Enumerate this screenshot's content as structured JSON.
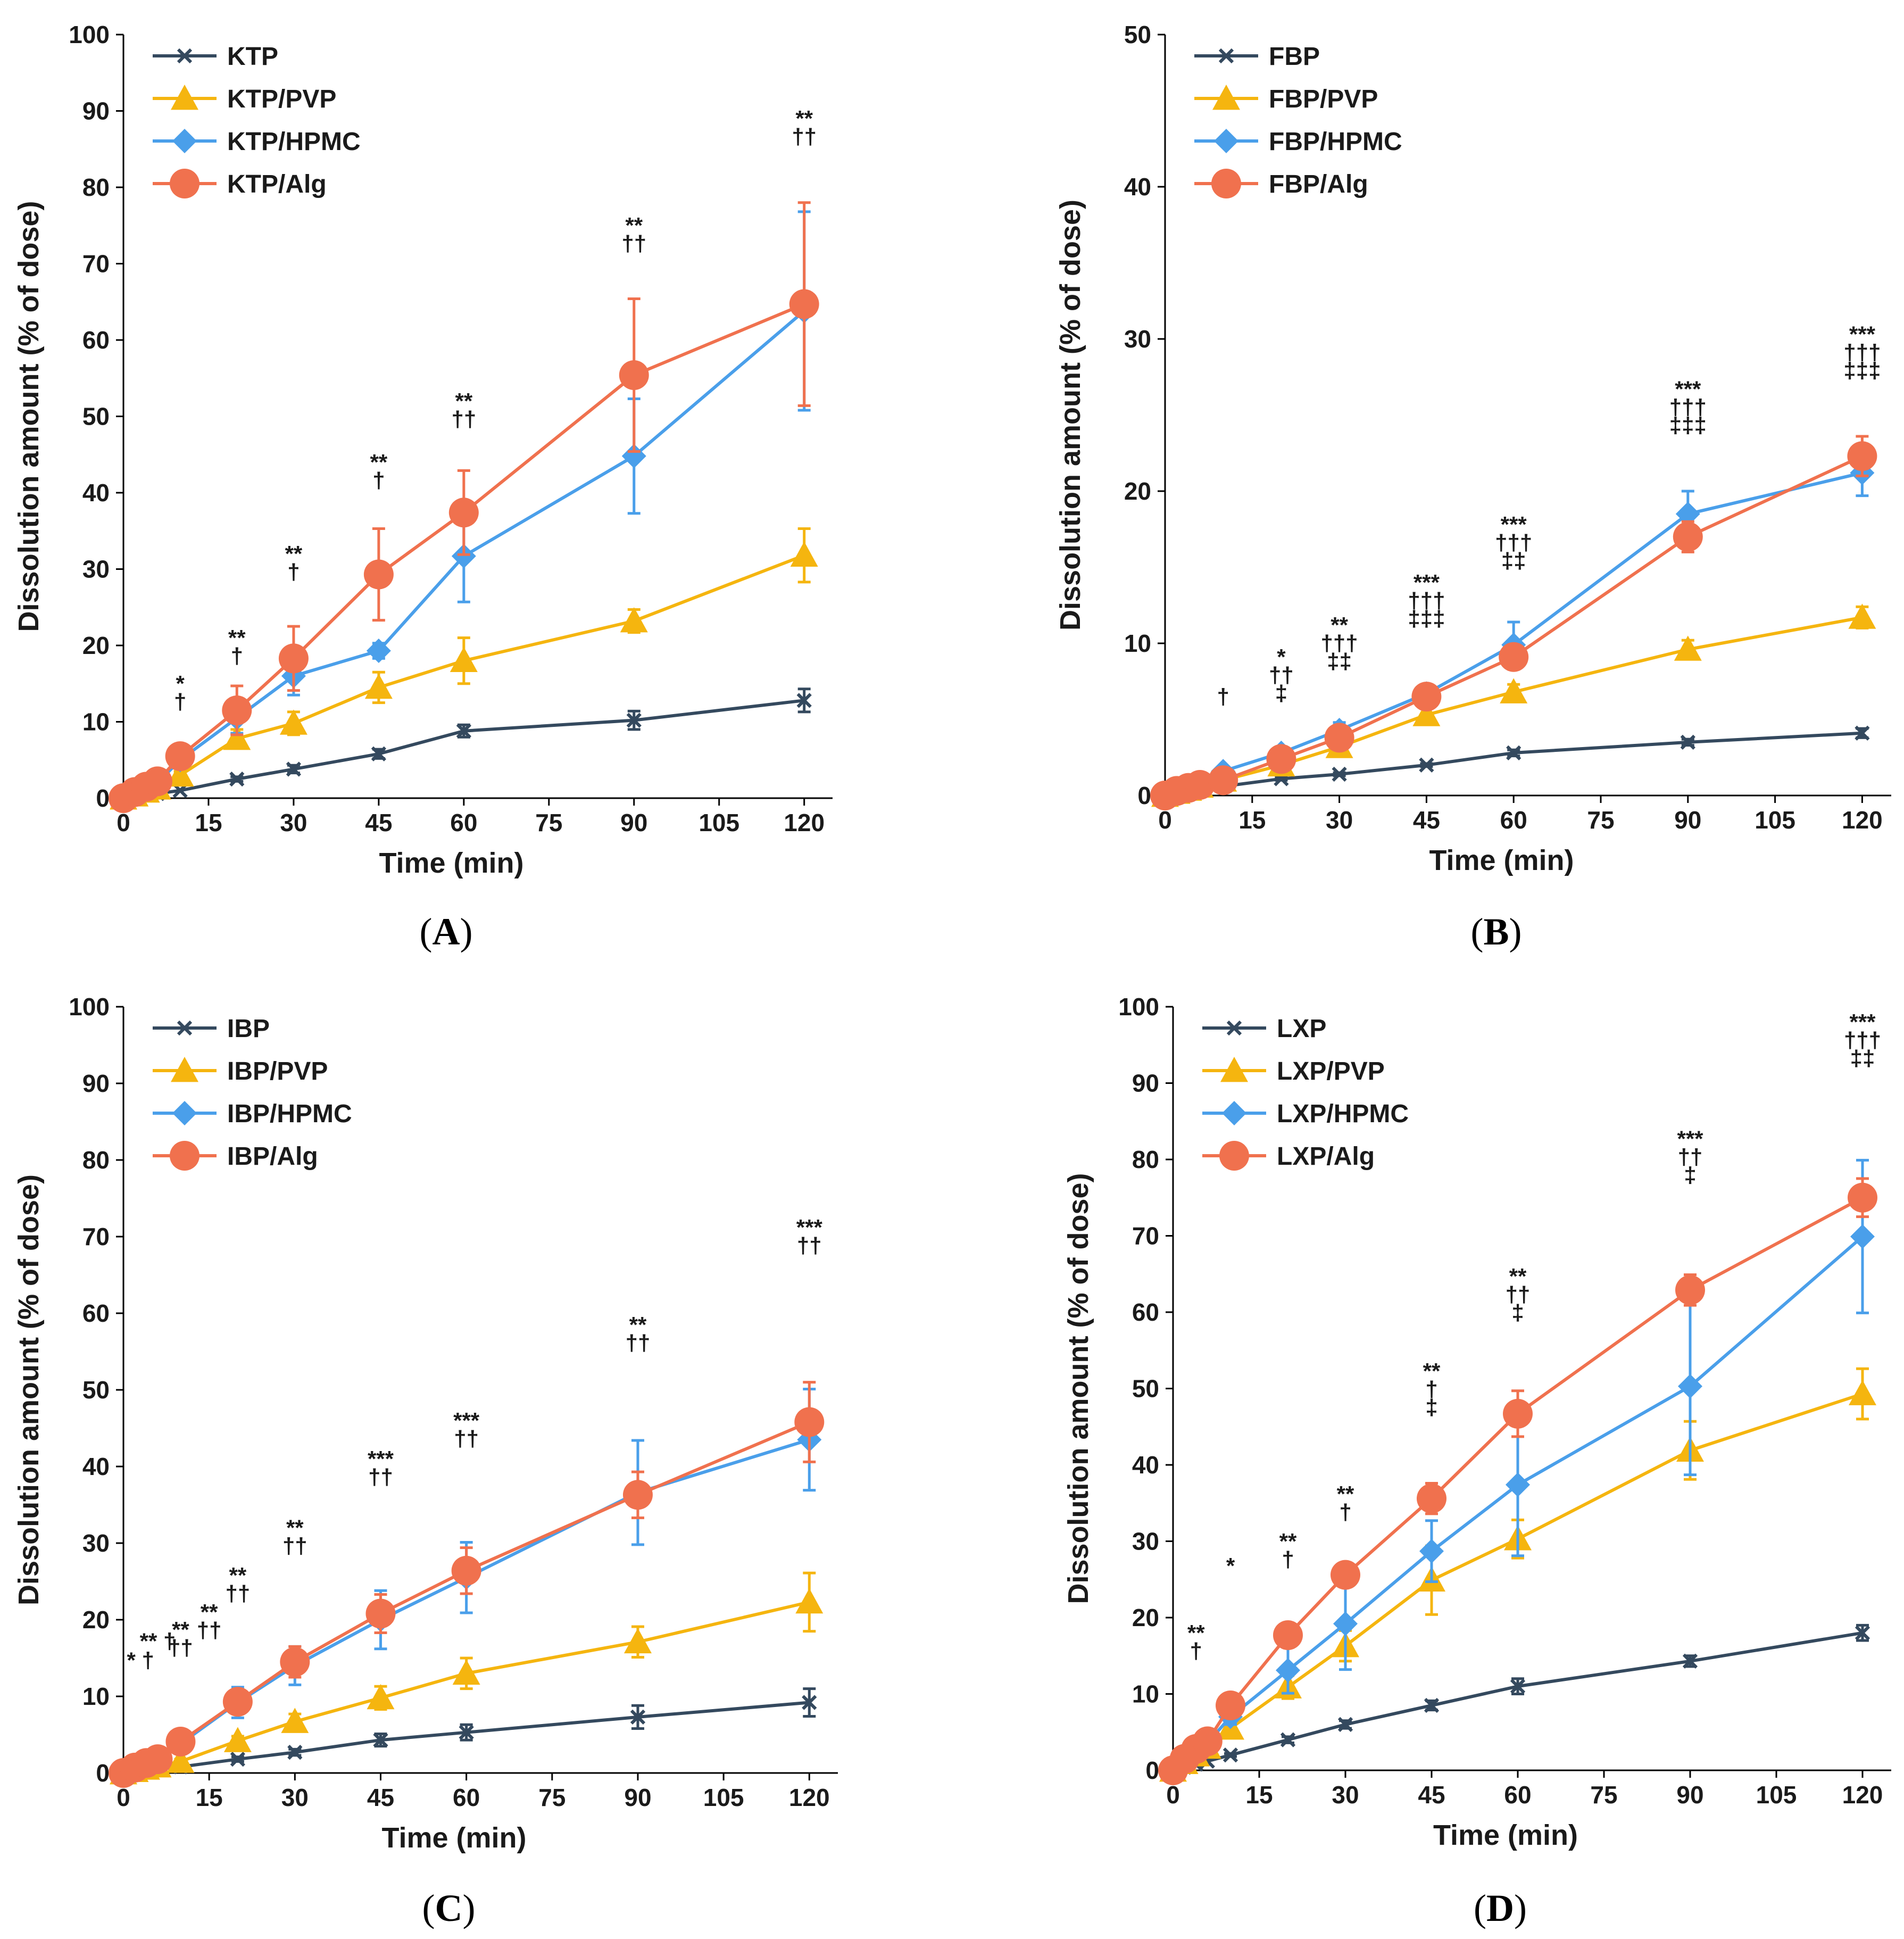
{
  "colors": {
    "drug": "#34495E",
    "pvp": "#F5B50F",
    "hpmc": "#4A9FEA",
    "alg": "#F0714E",
    "axis": "#000000"
  },
  "chart_data": [
    {
      "type": "line",
      "panel_label": "A",
      "xlabel": "Time (min)",
      "ylabel": "Dissolution amount (% of dose)",
      "xlim": [
        0,
        125
      ],
      "ylim": [
        0,
        100
      ],
      "xticks": [
        0,
        15,
        30,
        45,
        60,
        75,
        90,
        105,
        120
      ],
      "yticks": [
        0,
        10,
        20,
        30,
        40,
        50,
        60,
        70,
        80,
        90,
        100
      ],
      "x": [
        0,
        2,
        4,
        6,
        10,
        20,
        30,
        45,
        60,
        90,
        120
      ],
      "legend_position": "top-left",
      "series": [
        {
          "name": "KTP",
          "marker": "x",
          "color": "drug",
          "values": [
            0,
            0.2,
            0.4,
            0.6,
            1.0,
            2.5,
            3.8,
            5.8,
            8.8,
            10.2,
            12.8
          ],
          "errors": [
            0,
            0,
            0,
            0,
            0,
            0.3,
            0.5,
            0.6,
            0.8,
            1.2,
            1.5
          ]
        },
        {
          "name": "KTP/PVP",
          "marker": "triangle",
          "color": "pvp",
          "values": [
            0,
            0.4,
            0.9,
            1.3,
            3.0,
            7.8,
            9.8,
            14.5,
            18.0,
            23.2,
            31.8
          ],
          "errors": [
            0,
            0,
            0,
            0,
            0.5,
            1.2,
            1.5,
            2.0,
            3.0,
            1.5,
            3.5
          ]
        },
        {
          "name": "KTP/HPMC",
          "marker": "diamond",
          "color": "hpmc",
          "values": [
            0,
            0.7,
            1.3,
            2.0,
            5.0,
            10.5,
            16.0,
            19.3,
            31.7,
            44.8,
            63.8
          ],
          "errors": [
            0,
            0,
            0,
            0,
            0.8,
            2.0,
            2.5,
            1.0,
            6.0,
            7.5,
            13.0
          ]
        },
        {
          "name": "KTP/Alg",
          "marker": "circle",
          "color": "alg",
          "values": [
            0,
            0.8,
            1.5,
            2.2,
            5.5,
            11.5,
            18.3,
            29.3,
            37.4,
            55.4,
            64.7
          ],
          "errors": [
            0,
            0,
            0,
            0,
            1.0,
            3.2,
            4.2,
            6.0,
            5.5,
            10.0,
            13.3
          ]
        }
      ],
      "annotations": [
        {
          "x": 10,
          "y": 14,
          "lines": [
            "*",
            "†"
          ]
        },
        {
          "x": 20,
          "y": 20,
          "lines": [
            "**",
            "†"
          ]
        },
        {
          "x": 30,
          "y": 31,
          "lines": [
            "**",
            "†"
          ]
        },
        {
          "x": 45,
          "y": 43,
          "lines": [
            "**",
            "†"
          ]
        },
        {
          "x": 60,
          "y": 51,
          "lines": [
            "**",
            "††"
          ]
        },
        {
          "x": 90,
          "y": 74,
          "lines": [
            "**",
            "††"
          ]
        },
        {
          "x": 120,
          "y": 88,
          "lines": [
            "**",
            "††"
          ]
        }
      ]
    },
    {
      "type": "line",
      "panel_label": "B",
      "xlabel": "Time (min)",
      "ylabel": "Dissolution amount (% of dose)",
      "xlim": [
        0,
        125
      ],
      "ylim": [
        0,
        50
      ],
      "xticks": [
        0,
        15,
        30,
        45,
        60,
        75,
        90,
        105,
        120
      ],
      "yticks": [
        0,
        10,
        20,
        30,
        40,
        50
      ],
      "x": [
        0,
        2,
        4,
        6,
        10,
        20,
        30,
        45,
        60,
        90,
        120
      ],
      "legend_position": "top-left",
      "series": [
        {
          "name": "FBP",
          "marker": "x",
          "color": "drug",
          "values": [
            0,
            0.1,
            0.2,
            0.3,
            0.6,
            1.1,
            1.4,
            2.0,
            2.8,
            3.5,
            4.1
          ],
          "errors": [
            0,
            0,
            0,
            0,
            0,
            0.1,
            0.1,
            0.1,
            0.2,
            0.2,
            0.3
          ]
        },
        {
          "name": "FBP/PVP",
          "marker": "triangle",
          "color": "pvp",
          "values": [
            0,
            0.2,
            0.4,
            0.6,
            1.0,
            2.0,
            3.2,
            5.3,
            6.8,
            9.6,
            11.7
          ],
          "errors": [
            0,
            0,
            0,
            0,
            0.2,
            0.3,
            0.4,
            0.5,
            0.5,
            0.6,
            0.7
          ]
        },
        {
          "name": "FBP/HPMC",
          "marker": "diamond",
          "color": "hpmc",
          "values": [
            0,
            0.3,
            0.6,
            0.8,
            1.6,
            2.8,
            4.3,
            6.7,
            9.9,
            18.5,
            21.2
          ],
          "errors": [
            0,
            0,
            0,
            0,
            0.2,
            0.4,
            0.5,
            0.5,
            1.5,
            1.5,
            1.5
          ]
        },
        {
          "name": "FBP/Alg",
          "marker": "circle",
          "color": "alg",
          "values": [
            0,
            0.3,
            0.5,
            0.7,
            1.0,
            2.4,
            3.8,
            6.5,
            9.1,
            17.0,
            22.3
          ],
          "errors": [
            0,
            0,
            0,
            0,
            0.2,
            0.3,
            0.4,
            0.5,
            0.8,
            1.0,
            1.3
          ]
        }
      ],
      "annotations": [
        {
          "x": 10,
          "y": 6.0,
          "lines": [
            "†"
          ]
        },
        {
          "x": 20,
          "y": 8.6,
          "lines": [
            "*",
            "††",
            "‡"
          ]
        },
        {
          "x": 30,
          "y": 10.7,
          "lines": [
            "**",
            "†††",
            "‡‡"
          ]
        },
        {
          "x": 45,
          "y": 13.5,
          "lines": [
            "***",
            "†††",
            "‡‡‡"
          ]
        },
        {
          "x": 60,
          "y": 17.3,
          "lines": [
            "***",
            "†††",
            "‡‡"
          ]
        },
        {
          "x": 90,
          "y": 26.2,
          "lines": [
            "***",
            "†††",
            "‡‡‡"
          ]
        },
        {
          "x": 120,
          "y": 29.8,
          "lines": [
            "***",
            "†††",
            "‡‡‡"
          ]
        }
      ]
    },
    {
      "type": "line",
      "panel_label": "C",
      "xlabel": "Time (min)",
      "ylabel": "Dissolution amount (% of dose)",
      "xlim": [
        0,
        125
      ],
      "ylim": [
        0,
        100
      ],
      "xticks": [
        0,
        15,
        30,
        45,
        60,
        75,
        90,
        105,
        120
      ],
      "yticks": [
        0,
        10,
        20,
        30,
        40,
        50,
        60,
        70,
        80,
        90,
        100
      ],
      "x": [
        0,
        2,
        4,
        6,
        10,
        20,
        30,
        45,
        60,
        90,
        120
      ],
      "legend_position": "top-left",
      "series": [
        {
          "name": "IBP",
          "marker": "x",
          "color": "drug",
          "values": [
            0,
            0.2,
            0.4,
            0.5,
            0.8,
            1.8,
            2.7,
            4.3,
            5.3,
            7.3,
            9.2
          ],
          "errors": [
            0,
            0,
            0,
            0,
            0,
            0.3,
            0.4,
            0.8,
            1.0,
            1.5,
            1.8
          ]
        },
        {
          "name": "IBP/PVP",
          "marker": "triangle",
          "color": "pvp",
          "values": [
            0,
            0.3,
            0.6,
            0.9,
            1.5,
            4.2,
            6.7,
            9.8,
            13.0,
            17.1,
            22.3
          ],
          "errors": [
            0,
            0,
            0,
            0,
            0.3,
            0.6,
            1.0,
            1.5,
            2.0,
            2.0,
            3.8
          ]
        },
        {
          "name": "IBP/HPMC",
          "marker": "diamond",
          "color": "hpmc",
          "values": [
            0,
            0.6,
            1.2,
            1.6,
            3.8,
            9.2,
            14.0,
            20.0,
            25.5,
            36.6,
            43.5
          ],
          "errors": [
            0,
            0,
            0,
            0,
            0.5,
            2.0,
            2.5,
            3.8,
            4.6,
            6.8,
            6.6
          ]
        },
        {
          "name": "IBP/Alg",
          "marker": "circle",
          "color": "alg",
          "values": [
            0,
            0.7,
            1.3,
            1.8,
            4.1,
            9.3,
            14.5,
            20.8,
            26.4,
            36.3,
            45.8
          ],
          "errors": [
            0,
            0,
            0,
            0,
            0.5,
            1.5,
            2.0,
            2.5,
            3.0,
            3.0,
            5.2
          ]
        }
      ],
      "annotations": [
        {
          "x": 3,
          "y": 13.7,
          "lines": [
            "*",
            "†"
          ],
          "inline": true
        },
        {
          "x": 6,
          "y": 16.2,
          "lines": [
            "**",
            "†"
          ],
          "inline": true
        },
        {
          "x": 10,
          "y": 17.7,
          "lines": [
            "**",
            "††"
          ]
        },
        {
          "x": 15,
          "y": 20.0,
          "lines": [
            "**",
            "††"
          ]
        },
        {
          "x": 20,
          "y": 24.8,
          "lines": [
            "**",
            "††"
          ]
        },
        {
          "x": 30,
          "y": 31.0,
          "lines": [
            "**",
            "††"
          ]
        },
        {
          "x": 45,
          "y": 40.0,
          "lines": [
            "***",
            "††"
          ]
        },
        {
          "x": 60,
          "y": 45.0,
          "lines": [
            "***",
            "††"
          ]
        },
        {
          "x": 90,
          "y": 57.5,
          "lines": [
            "**",
            "††"
          ]
        },
        {
          "x": 120,
          "y": 70.2,
          "lines": [
            "***",
            "††"
          ]
        }
      ]
    },
    {
      "type": "line",
      "panel_label": "D",
      "xlabel": "Time (min)",
      "ylabel": "Dissolution amount (% of dose)",
      "xlim": [
        0,
        125
      ],
      "ylim": [
        0,
        100
      ],
      "xticks": [
        0,
        15,
        30,
        45,
        60,
        75,
        90,
        105,
        120
      ],
      "yticks": [
        0,
        10,
        20,
        30,
        40,
        50,
        60,
        70,
        80,
        90,
        100
      ],
      "x": [
        0,
        2,
        4,
        6,
        10,
        20,
        30,
        45,
        60,
        90,
        120
      ],
      "legend_position": "top-left",
      "series": [
        {
          "name": "LXP",
          "marker": "x",
          "color": "drug",
          "values": [
            0,
            0.4,
            0.8,
            1.2,
            2.0,
            4.0,
            6.0,
            8.5,
            11.0,
            14.3,
            18.0
          ],
          "errors": [
            0,
            0,
            0,
            0,
            0.2,
            0.4,
            0.5,
            0.6,
            1.0,
            0.7,
            1.0
          ]
        },
        {
          "name": "LXP/PVP",
          "marker": "triangle",
          "color": "pvp",
          "values": [
            0,
            1.0,
            2.0,
            3.0,
            5.5,
            10.9,
            16.3,
            24.9,
            30.3,
            41.9,
            49.3
          ],
          "errors": [
            0,
            0,
            0,
            0,
            0.8,
            1.5,
            2.0,
            4.5,
            2.5,
            3.8,
            3.3
          ]
        },
        {
          "name": "LXP/HPMC",
          "marker": "diamond",
          "color": "hpmc",
          "values": [
            0,
            1.3,
            2.6,
            3.6,
            7.0,
            13.1,
            19.2,
            28.7,
            37.4,
            50.3,
            69.9
          ],
          "errors": [
            0,
            0,
            0,
            0,
            1.0,
            3.0,
            6.0,
            4.0,
            9.3,
            11.6,
            10.0
          ]
        },
        {
          "name": "LXP/Alg",
          "marker": "circle",
          "color": "alg",
          "values": [
            0,
            1.5,
            2.8,
            3.8,
            8.5,
            17.7,
            25.6,
            35.6,
            46.7,
            62.9,
            75.0
          ],
          "errors": [
            0,
            0,
            0,
            0,
            1.0,
            1.2,
            1.5,
            2.0,
            3.0,
            2.0,
            2.5
          ]
        }
      ],
      "annotations": [
        {
          "x": 4,
          "y": 17.0,
          "lines": [
            "**",
            "†"
          ]
        },
        {
          "x": 10,
          "y": 25.8,
          "lines": [
            "*"
          ]
        },
        {
          "x": 20,
          "y": 29.0,
          "lines": [
            "**",
            "†"
          ]
        },
        {
          "x": 30,
          "y": 35.2,
          "lines": [
            "**",
            "†"
          ]
        },
        {
          "x": 45,
          "y": 51.3,
          "lines": [
            "**",
            "†",
            "‡"
          ]
        },
        {
          "x": 60,
          "y": 63.7,
          "lines": [
            "**",
            "††",
            "‡"
          ]
        },
        {
          "x": 90,
          "y": 81.7,
          "lines": [
            "***",
            "††",
            "‡"
          ]
        },
        {
          "x": 120,
          "y": 97.0,
          "lines": [
            "***",
            "†††",
            "‡‡"
          ]
        }
      ]
    }
  ]
}
